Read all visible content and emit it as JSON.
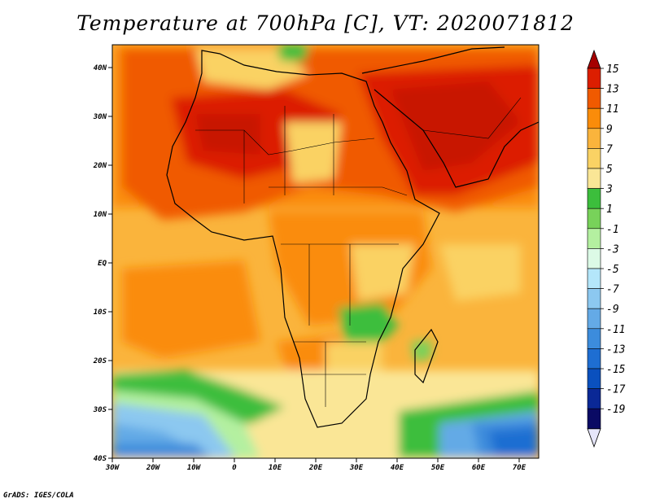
{
  "title": "Temperature at 700hPa [C], VT: 2020071812",
  "footer": "GrADS: IGES/COLA",
  "map": {
    "lon_labels": [
      "30W",
      "20W",
      "10W",
      "0",
      "10E",
      "20E",
      "30E",
      "40E",
      "50E",
      "60E",
      "70E"
    ],
    "lat_labels": [
      "40N",
      "30N",
      "20N",
      "10N",
      "EQ",
      "10S",
      "20S",
      "30S",
      "40S"
    ]
  },
  "colorbar": {
    "labels": [
      "15",
      "13",
      "11",
      "9",
      "7",
      "5",
      "3",
      "1",
      "-1",
      "-3",
      "-5",
      "-7",
      "-9",
      "-11",
      "-13",
      "-15",
      "-17",
      "-19"
    ],
    "colors": [
      "#a50000",
      "#dc1e00",
      "#f05a00",
      "#fa8c0a",
      "#fab43c",
      "#fad264",
      "#fae696",
      "#3cbe3c",
      "#78d25a",
      "#b4f0a0",
      "#dcfae6",
      "#b4e6fa",
      "#8cc8f0",
      "#64aae6",
      "#3c8cdc",
      "#1e6ed2",
      "#0a50be",
      "#0a2896",
      "#0a0a64",
      "#e6e6fa"
    ]
  }
}
